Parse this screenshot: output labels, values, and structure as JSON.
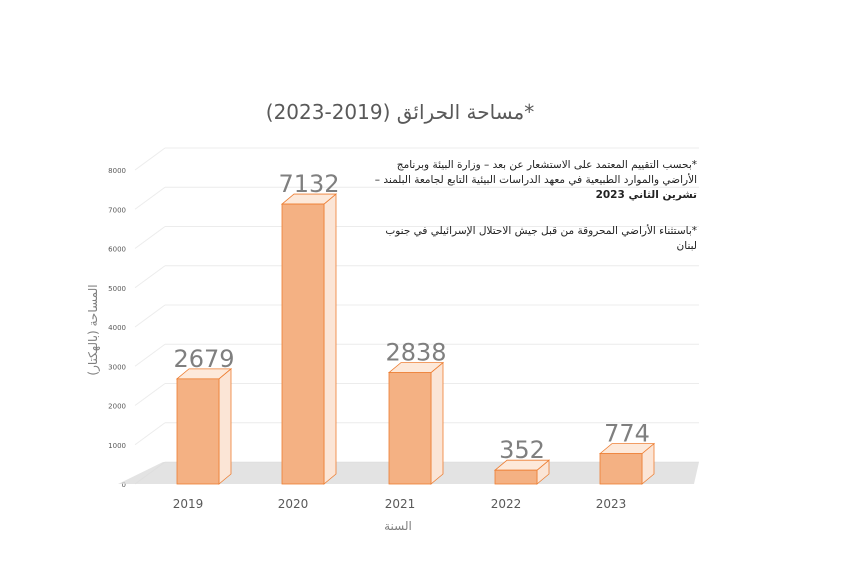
{
  "chart_data": {
    "type": "bar",
    "title": "مساحة الحرائق (2019-2023)*",
    "xlabel": "السنة",
    "ylabel": "المساحة (بالهكتار)",
    "categories": [
      "2019",
      "2020",
      "2021",
      "2022",
      "2023"
    ],
    "values": [
      2679,
      7132,
      2838,
      352,
      774
    ],
    "data_labels": [
      "2679",
      "7132",
      "2838",
      "352",
      "774"
    ],
    "yticks": [
      "0",
      "1000",
      "2000",
      "3000",
      "4000",
      "5000",
      "6000",
      "7000",
      "8000"
    ],
    "ylim": [
      0,
      8000
    ],
    "grid": true,
    "legend": "none",
    "bar_color": "#f4b183",
    "bar_edge_color": "#ed7d31"
  },
  "notes": {
    "note1_text": "*بحسب التقييم المعتمد على الاستشعار عن بعد – وزارة البيئة وبرنامج الأراضي والموارد الطبيعية في معهد الدراسات البيئية التابع لجامعة البلمند –",
    "note1_bold": "تشرين الثاني 2023",
    "note2_text": "*باستثناء الأراضي المحروقة من قبل جيش الاحتلال الإسرائيلي في جنوب لبنان"
  }
}
